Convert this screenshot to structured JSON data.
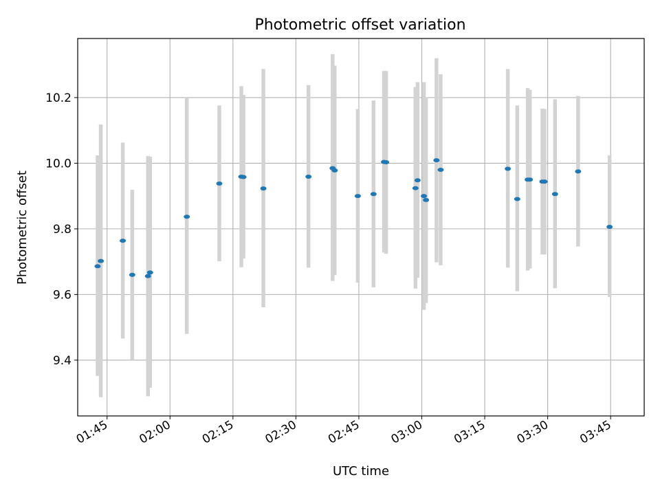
{
  "chart_data": {
    "type": "scatter",
    "title": "Photometric offset variation",
    "xlabel": "UTC time",
    "ylabel": "Photometric offset",
    "xlim": [
      "01:38",
      "03:53"
    ],
    "ylim": [
      9.23,
      10.38
    ],
    "xticks": [
      "01:45",
      "02:00",
      "02:15",
      "02:30",
      "02:45",
      "03:00",
      "03:15",
      "03:30",
      "03:45"
    ],
    "yticks": [
      9.4,
      9.6,
      9.8,
      10.0,
      10.2
    ],
    "grid": true,
    "point_color": "#1f77b4",
    "errorbar_color": "#d3d3d3",
    "points": [
      {
        "t": "01:42:45",
        "y": 9.686,
        "lo": 9.352,
        "hi": 10.024
      },
      {
        "t": "01:43:30",
        "y": 9.702,
        "lo": 9.287,
        "hi": 10.118
      },
      {
        "t": "01:48:45",
        "y": 9.764,
        "lo": 9.466,
        "hi": 10.063
      },
      {
        "t": "01:51:00",
        "y": 9.66,
        "lo": 9.402,
        "hi": 9.919
      },
      {
        "t": "01:54:45",
        "y": 9.656,
        "lo": 9.29,
        "hi": 10.022
      },
      {
        "t": "01:55:15",
        "y": 9.667,
        "lo": 9.316,
        "hi": 10.02
      },
      {
        "t": "02:04:00",
        "y": 9.837,
        "lo": 9.48,
        "hi": 10.2
      },
      {
        "t": "02:11:45",
        "y": 9.938,
        "lo": 9.701,
        "hi": 10.176
      },
      {
        "t": "02:17:00",
        "y": 9.959,
        "lo": 9.683,
        "hi": 10.235
      },
      {
        "t": "02:17:30",
        "y": 9.958,
        "lo": 9.71,
        "hi": 10.208
      },
      {
        "t": "02:22:15",
        "y": 9.923,
        "lo": 9.561,
        "hi": 10.287
      },
      {
        "t": "02:33:00",
        "y": 9.959,
        "lo": 9.682,
        "hi": 10.238
      },
      {
        "t": "02:38:45",
        "y": 9.985,
        "lo": 9.641,
        "hi": 10.332
      },
      {
        "t": "02:39:15",
        "y": 9.978,
        "lo": 9.659,
        "hi": 10.297
      },
      {
        "t": "02:44:45",
        "y": 9.9,
        "lo": 9.636,
        "hi": 10.165
      },
      {
        "t": "02:48:30",
        "y": 9.906,
        "lo": 9.622,
        "hi": 10.191
      },
      {
        "t": "02:51:00",
        "y": 10.004,
        "lo": 9.728,
        "hi": 10.281
      },
      {
        "t": "02:51:30",
        "y": 10.003,
        "lo": 9.724,
        "hi": 10.281
      },
      {
        "t": "02:58:30",
        "y": 9.924,
        "lo": 9.618,
        "hi": 10.232
      },
      {
        "t": "02:59:00",
        "y": 9.948,
        "lo": 9.651,
        "hi": 10.247
      },
      {
        "t": "03:00:30",
        "y": 9.9,
        "lo": 9.553,
        "hi": 10.247
      },
      {
        "t": "03:01:00",
        "y": 9.888,
        "lo": 9.574,
        "hi": 10.201
      },
      {
        "t": "03:03:30",
        "y": 10.009,
        "lo": 9.698,
        "hi": 10.32
      },
      {
        "t": "03:04:30",
        "y": 9.98,
        "lo": 9.689,
        "hi": 10.271
      },
      {
        "t": "03:20:30",
        "y": 9.983,
        "lo": 9.682,
        "hi": 10.287
      },
      {
        "t": "03:22:45",
        "y": 9.891,
        "lo": 9.61,
        "hi": 10.176
      },
      {
        "t": "03:25:15",
        "y": 9.95,
        "lo": 9.673,
        "hi": 10.229
      },
      {
        "t": "03:25:45",
        "y": 9.95,
        "lo": 9.679,
        "hi": 10.224
      },
      {
        "t": "03:28:45",
        "y": 9.944,
        "lo": 9.722,
        "hi": 10.166
      },
      {
        "t": "03:29:15",
        "y": 9.944,
        "lo": 9.722,
        "hi": 10.165
      },
      {
        "t": "03:31:45",
        "y": 9.906,
        "lo": 9.619,
        "hi": 10.195
      },
      {
        "t": "03:37:15",
        "y": 9.975,
        "lo": 9.746,
        "hi": 10.205
      },
      {
        "t": "03:44:45",
        "y": 9.806,
        "lo": 9.592,
        "hi": 10.024
      }
    ]
  }
}
